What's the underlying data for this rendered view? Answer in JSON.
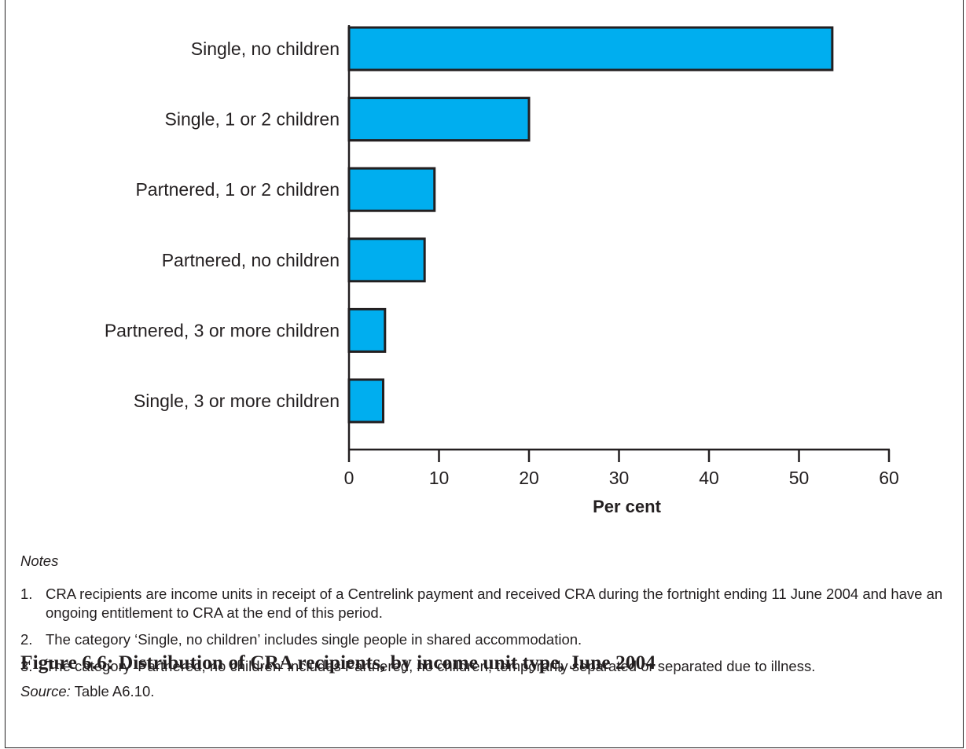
{
  "chart_data": {
    "type": "bar",
    "orientation": "horizontal",
    "categories": [
      "Single, no children",
      "Single, 1 or 2 children",
      "Partnered, 1 or 2 children",
      "Partnered, no children",
      "Partnered, 3 or more children",
      "Single, 3 or more children"
    ],
    "values": [
      53.7,
      20.0,
      9.5,
      8.4,
      4.0,
      3.8
    ],
    "xlabel": "Per cent",
    "ylabel": "",
    "xlim": [
      0,
      60
    ],
    "xticks": [
      0,
      10,
      20,
      30,
      40,
      50,
      60
    ],
    "grid": false,
    "bar_color": "#00aeef",
    "bar_edge_color": "#231f20"
  },
  "notes": {
    "heading": "Notes",
    "items": [
      {
        "num": "1.",
        "text": "CRA recipients are income units in receipt of a Centrelink payment and received CRA during the fortnight ending 11 June 2004 and have an ongoing entitlement to CRA at the end of this period."
      },
      {
        "num": "2.",
        "text": "The category ‘Single, no children’ includes single people in shared accommodation."
      },
      {
        "num": "3.",
        "text": "The category ‘Partnered, no children’ includes Partnered, no children, temporarily separated or separated due to illness."
      }
    ],
    "source_label": "Source:",
    "source_text": "Table A6.10."
  },
  "figure_title": "Figure 6.6: Distribution of CRA recipients, by income unit type, June 2004"
}
